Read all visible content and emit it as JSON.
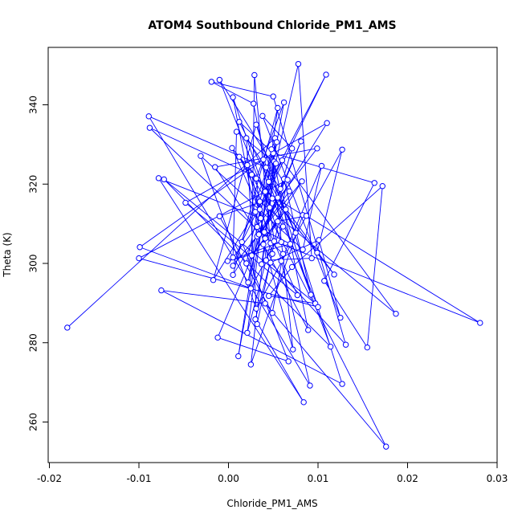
{
  "chart_data": {
    "type": "scatter",
    "title": "ATOM4 Southbound Chloride_PM1_AMS",
    "xlabel": "Chloride_PM1_AMS",
    "ylabel": "Theta (K)",
    "xlim": [
      -0.02,
      0.03
    ],
    "ylim": [
      250,
      355
    ],
    "x_ticks": [
      -0.02,
      -0.01,
      0.0,
      0.01,
      0.02,
      0.03
    ],
    "x_tick_labels": [
      "-0.02",
      "-0.01",
      "0.00",
      "0.01",
      "0.02",
      "0.03"
    ],
    "y_ticks": [
      260,
      280,
      300,
      320,
      340
    ],
    "y_tick_labels": [
      "260",
      "280",
      "300",
      "320",
      "340"
    ],
    "connected": true,
    "grid": false,
    "legend": "none",
    "colors": {
      "series": "#0000ff",
      "axes": "#000000",
      "background": "#ffffff"
    },
    "series": [
      {
        "points": [
          [
            -0.018,
            283.8
          ],
          [
            0.0052,
            331.6
          ],
          [
            0.0046,
            314.1
          ],
          [
            -0.001,
            346.3
          ],
          [
            0.0068,
            318.2
          ],
          [
            0.0032,
            306.8
          ],
          [
            0.0011,
            276.6
          ],
          [
            0.0062,
            340.6
          ],
          [
            0.0031,
            321.4
          ],
          [
            0.0042,
            300.8
          ],
          [
            0.0093,
            301.3
          ],
          [
            0.0078,
            350.3
          ],
          [
            0.0022,
            295.2
          ],
          [
            0.0035,
            313.6
          ],
          [
            0.0109,
            347.6
          ],
          [
            0.0041,
            318.1
          ],
          [
            0.0083,
            312.2
          ],
          [
            0.0025,
            274.5
          ],
          [
            0.0051,
            325.7
          ],
          [
            0.0089,
            283.2
          ],
          [
            0.0039,
            304.8
          ],
          [
            0.0064,
            313.6
          ],
          [
            0.0026,
            302.0
          ],
          [
            0.0029,
            347.5
          ],
          [
            0.0047,
            305.1
          ],
          [
            0.0021,
            282.5
          ],
          [
            0.0055,
            339.2
          ],
          [
            0.0005,
            297.1
          ],
          [
            0.011,
            335.4
          ],
          [
            -0.0048,
            315.3
          ],
          [
            0.0077,
            292.0
          ],
          [
            0.0004,
            329.1
          ],
          [
            0.0099,
            302.7
          ],
          [
            0.0127,
            328.7
          ],
          [
            0.0031,
            288.6
          ],
          [
            -0.0031,
            327.1
          ],
          [
            0.0083,
            303.5
          ],
          [
            0.0104,
            324.6
          ],
          [
            0.0059,
            300.6
          ],
          [
            0.0091,
            269.2
          ],
          [
            -0.0089,
            337.1
          ],
          [
            0.0042,
            324.2
          ],
          [
            0.0075,
            307.7
          ],
          [
            0.0012,
            335.7
          ],
          [
            0.005,
            327.8
          ],
          [
            0.0163,
            320.3
          ],
          [
            0.0107,
            295.6
          ],
          [
            0.0155,
            278.8
          ],
          [
            0.0172,
            319.5
          ],
          [
            0.0071,
            299.1
          ],
          [
            0.0045,
            291.8
          ],
          [
            0.0097,
            289.9
          ],
          [
            -0.0072,
            321.2
          ],
          [
            0.0114,
            279.0
          ],
          [
            0.0045,
            320.6
          ],
          [
            0.0028,
            340.3
          ],
          [
            -0.0019,
            345.8
          ],
          [
            0.005,
            342.1
          ],
          [
            0.0131,
            279.5
          ],
          [
            0.0047,
            300.2
          ],
          [
            0.0101,
            305.9
          ],
          [
            0.0125,
            286.3
          ],
          [
            0.0038,
            337.2
          ],
          [
            0.0071,
            329.0
          ],
          [
            0.0055,
            316.6
          ],
          [
            0.0118,
            297.2
          ],
          [
            0.0021,
            324.8
          ],
          [
            0.0036,
            311.4
          ],
          [
            -0.0078,
            321.5
          ],
          [
            0.0084,
            265.0
          ],
          [
            0.003,
            285.9
          ],
          [
            0.0049,
            302.4
          ],
          [
            0.0035,
            315.6
          ],
          [
            0.0187,
            287.3
          ],
          [
            0.006,
            326.0
          ],
          [
            0.0015,
            305.4
          ],
          [
            0.0067,
            275.3
          ],
          [
            -0.0012,
            281.3
          ],
          [
            0.0081,
            330.8
          ],
          [
            0.004,
            307.9
          ],
          [
            0.0062,
            321.3
          ],
          [
            0.0092,
            292.1
          ],
          [
            0.0031,
            335.0
          ],
          [
            -0.0017,
            295.8
          ],
          [
            0.003,
            313.0
          ],
          [
            0.0072,
            278.3
          ],
          [
            0.0048,
            328.8
          ],
          [
            0.002,
            300.0
          ],
          [
            0.0055,
            310.6
          ],
          [
            0.0087,
            312.0
          ],
          [
            0.0281,
            285.0
          ],
          [
            0.0051,
            305.6
          ],
          [
            0.0039,
            326.2
          ],
          [
            -0.0099,
            304.1
          ],
          [
            0.0025,
            293.7
          ],
          [
            0.0061,
            309.3
          ],
          [
            0.0012,
            326.9
          ],
          [
            0.0176,
            253.8
          ],
          [
            0.0041,
            289.9
          ],
          [
            -0.0075,
            293.2
          ],
          [
            0.0127,
            269.6
          ],
          [
            0.0058,
            318.8
          ],
          [
            0.002,
            331.6
          ],
          [
            0.0032,
            284.7
          ],
          [
            0.0066,
            321.1
          ],
          [
            -0.01,
            301.3
          ],
          [
            0.01,
            289.0
          ],
          [
            0.0049,
            316.4
          ],
          [
            -0.001,
            311.9
          ],
          [
            0.0049,
            287.5
          ],
          [
            0.0061,
            302.4
          ],
          [
            -0.0088,
            334.2
          ],
          [
            0.0026,
            322.4
          ],
          [
            0.0041,
            306.3
          ],
          [
            0.0082,
            320.7
          ],
          [
            0.0005,
            299.4
          ],
          [
            0.0054,
            330.6
          ],
          [
            0.0032,
            309.2
          ],
          [
            0.0069,
            304.9
          ],
          [
            -0.0001,
            300.6
          ],
          [
            0.0059,
            305.4
          ],
          [
            0.0005,
            341.9
          ],
          [
            0.0034,
            307.3
          ],
          [
            -0.0015,
            324.3
          ],
          [
            0.0099,
            329.0
          ],
          [
            0.0005,
            301.5
          ],
          [
            0.0009,
            333.2
          ],
          [
            0.0053,
            325.2
          ],
          [
            0.0037,
            299.8
          ]
        ]
      }
    ]
  }
}
